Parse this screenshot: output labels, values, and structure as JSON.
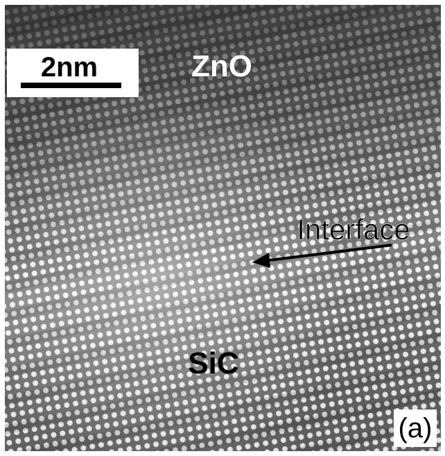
{
  "scale_bar": {
    "label": "2nm"
  },
  "labels": {
    "top": "ZnO",
    "interface": "Interface",
    "bottom": "SiC",
    "panel": "(a)"
  }
}
